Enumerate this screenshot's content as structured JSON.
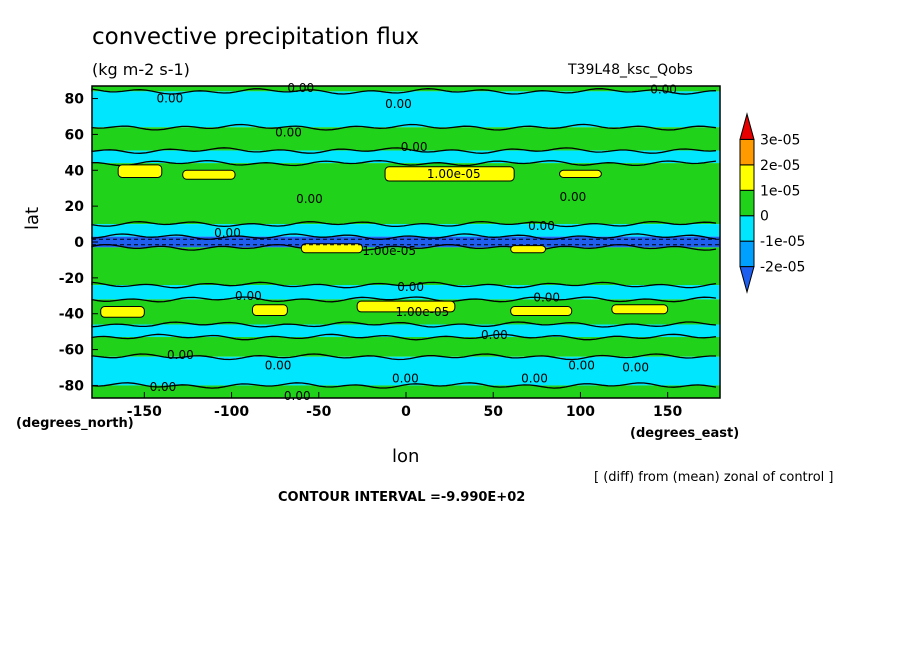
{
  "header": {
    "title": "convective precipitation flux",
    "units": "(kg m-2 s-1)",
    "run_name": "T39L48_ksc_Qobs"
  },
  "footer": {
    "diff_note": "[ (diff) from (mean) zonal of control ]",
    "contour_interval": "CONTOUR INTERVAL =-9.990E+02"
  },
  "chart_data": {
    "type": "heatmap",
    "title": "convective precipitation flux",
    "subtitle": "(kg m-2 s-1)",
    "xlabel": "lon",
    "ylabel": "lat",
    "x_unit_label": "(degrees_east)",
    "y_unit_label": "(degrees_north)",
    "xlim": [
      -180,
      180
    ],
    "ylim": [
      -87,
      87
    ],
    "x_ticks": [
      -150,
      -100,
      -50,
      0,
      50,
      100,
      150
    ],
    "x_tick_labels": [
      "-150",
      "-100",
      "-50",
      "0",
      "50",
      "100",
      "150"
    ],
    "y_ticks": [
      80,
      60,
      40,
      20,
      0,
      -20,
      -40,
      -60,
      -80
    ],
    "y_tick_labels": [
      "80",
      "60",
      "40",
      "20",
      "0",
      "-20",
      "-40",
      "-60",
      "-80"
    ],
    "colorbar": {
      "labels": [
        "3e-05",
        "2e-05",
        "1e-05",
        "0",
        "-1e-05",
        "-2e-05"
      ],
      "levels": [
        -3e-05,
        -2e-05,
        -1e-05,
        0,
        1e-05,
        2e-05,
        3e-05
      ],
      "colors": [
        "#1e5ff0",
        "#00a0ff",
        "#00e6ff",
        "#21d21a",
        "#ffff00",
        "#ff9a00",
        "#e60000"
      ]
    },
    "zonal_bands": [
      {
        "lat_from": 87,
        "lat_to": 84,
        "category": "positive",
        "color": "#21d21a"
      },
      {
        "lat_from": 84,
        "lat_to": 64,
        "category": "negative",
        "color": "#00e6ff"
      },
      {
        "lat_from": 64,
        "lat_to": 51,
        "category": "positive",
        "color": "#21d21a"
      },
      {
        "lat_from": 51,
        "lat_to": 44,
        "category": "negative",
        "color": "#00e6ff"
      },
      {
        "lat_from": 44,
        "lat_to": 10,
        "category": "positive",
        "color": "#21d21a"
      },
      {
        "lat_from": 10,
        "lat_to": 3,
        "category": "negative",
        "color": "#00e6ff"
      },
      {
        "lat_from": 3,
        "lat_to": -3,
        "category": "strong negative",
        "color": "#1e5ff0"
      },
      {
        "lat_from": -3,
        "lat_to": -24,
        "category": "positive",
        "color": "#21d21a"
      },
      {
        "lat_from": -24,
        "lat_to": -32,
        "category": "negative",
        "color": "#00e6ff"
      },
      {
        "lat_from": -32,
        "lat_to": -46,
        "category": "positive",
        "color": "#21d21a"
      },
      {
        "lat_from": -46,
        "lat_to": -53,
        "category": "negative",
        "color": "#00e6ff"
      },
      {
        "lat_from": -53,
        "lat_to": -64,
        "category": "positive",
        "color": "#21d21a"
      },
      {
        "lat_from": -64,
        "lat_to": -80,
        "category": "negative",
        "color": "#00e6ff"
      },
      {
        "lat_from": -80,
        "lat_to": -87,
        "category": "positive",
        "color": "#21d21a"
      }
    ],
    "yellow_patches": [
      {
        "lon_from": -165,
        "lon_to": -140,
        "lat_from": 43,
        "lat_to": 36
      },
      {
        "lon_from": -128,
        "lon_to": -98,
        "lat_from": 40,
        "lat_to": 35
      },
      {
        "lon_from": -12,
        "lon_to": 62,
        "lat_from": 42,
        "lat_to": 34
      },
      {
        "lon_from": 88,
        "lon_to": 112,
        "lat_from": 40,
        "lat_to": 36
      },
      {
        "lon_from": -175,
        "lon_to": -150,
        "lat_from": -36,
        "lat_to": -42
      },
      {
        "lon_from": -88,
        "lon_to": -68,
        "lat_from": -35,
        "lat_to": -41
      },
      {
        "lon_from": -28,
        "lon_to": 28,
        "lat_from": -33,
        "lat_to": -39
      },
      {
        "lon_from": 60,
        "lon_to": 95,
        "lat_from": -36,
        "lat_to": -41
      },
      {
        "lon_from": 118,
        "lon_to": 150,
        "lat_from": -35,
        "lat_to": -40
      },
      {
        "lon_from": -60,
        "lon_to": -25,
        "lat_from": -1,
        "lat_to": -6
      },
      {
        "lon_from": 60,
        "lon_to": 80,
        "lat_from": -2,
        "lat_to": -6
      }
    ],
    "contour_labels": [
      {
        "text": "0.00",
        "lon": -143,
        "lat": 80
      },
      {
        "text": "0.00",
        "lon": -68,
        "lat": 86
      },
      {
        "text": "0.00",
        "lon": -12,
        "lat": 77
      },
      {
        "text": "0.00",
        "lon": 140,
        "lat": 85
      },
      {
        "text": "0.00",
        "lon": -75,
        "lat": 61
      },
      {
        "text": "0.00",
        "lon": -3,
        "lat": 53
      },
      {
        "text": "1.00e-05",
        "lon": 12,
        "lat": 38
      },
      {
        "text": "0.00",
        "lon": -63,
        "lat": 24
      },
      {
        "text": "0.00",
        "lon": 88,
        "lat": 25
      },
      {
        "text": "0.00",
        "lon": -110,
        "lat": 5
      },
      {
        "text": "0.00",
        "lon": 70,
        "lat": 9
      },
      {
        "text": "1.00e-05",
        "lon": -25,
        "lat": -5
      },
      {
        "text": "0.00",
        "lon": -98,
        "lat": -30
      },
      {
        "text": "0.00",
        "lon": -5,
        "lat": -25
      },
      {
        "text": "0.00",
        "lon": 73,
        "lat": -31
      },
      {
        "text": "1.00e-05",
        "lon": -6,
        "lat": -39
      },
      {
        "text": "0.00",
        "lon": 43,
        "lat": -52
      },
      {
        "text": "0.00",
        "lon": -137,
        "lat": -63
      },
      {
        "text": "0.00",
        "lon": -81,
        "lat": -69
      },
      {
        "text": "0.00",
        "lon": -8,
        "lat": -76
      },
      {
        "text": "0.00",
        "lon": 66,
        "lat": -76
      },
      {
        "text": "0.00",
        "lon": 93,
        "lat": -69
      },
      {
        "text": "0.00",
        "lon": 124,
        "lat": -70
      },
      {
        "text": "0.00",
        "lon": -147,
        "lat": -81
      },
      {
        "text": "0.00",
        "lon": -70,
        "lat": -86
      }
    ]
  }
}
